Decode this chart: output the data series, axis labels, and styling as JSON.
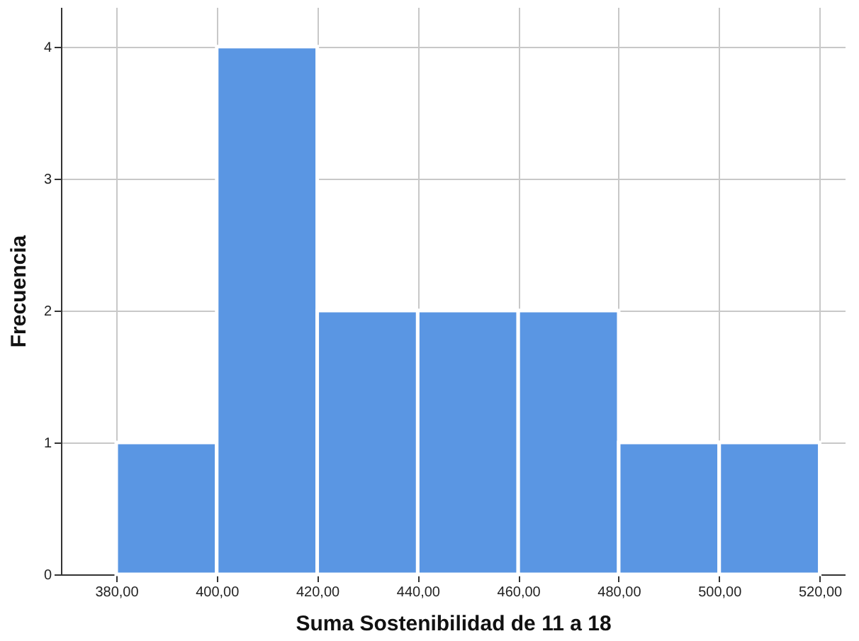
{
  "chart_data": {
    "type": "histogram",
    "xlabel": "Suma Sostenibilidad de 11 a 18",
    "ylabel": "Frecuencia",
    "bins": [
      380,
      400,
      420,
      440,
      460,
      480,
      500,
      520
    ],
    "values": [
      1,
      4,
      2,
      2,
      2,
      1,
      1
    ],
    "color": "#5a96e3",
    "xlim": [
      369,
      525
    ],
    "xticks": [
      {
        "value": 380,
        "label": "380,00"
      },
      {
        "value": 400,
        "label": "400,00"
      },
      {
        "value": 420,
        "label": "420,00"
      },
      {
        "value": 440,
        "label": "440,00"
      },
      {
        "value": 460,
        "label": "460,00"
      },
      {
        "value": 480,
        "label": "480,00"
      },
      {
        "value": 500,
        "label": "500,00"
      },
      {
        "value": 520,
        "label": "520,00"
      }
    ],
    "ylim": [
      0,
      4.3
    ],
    "yticks": [
      0,
      1,
      2,
      3,
      4
    ],
    "grid": true
  }
}
